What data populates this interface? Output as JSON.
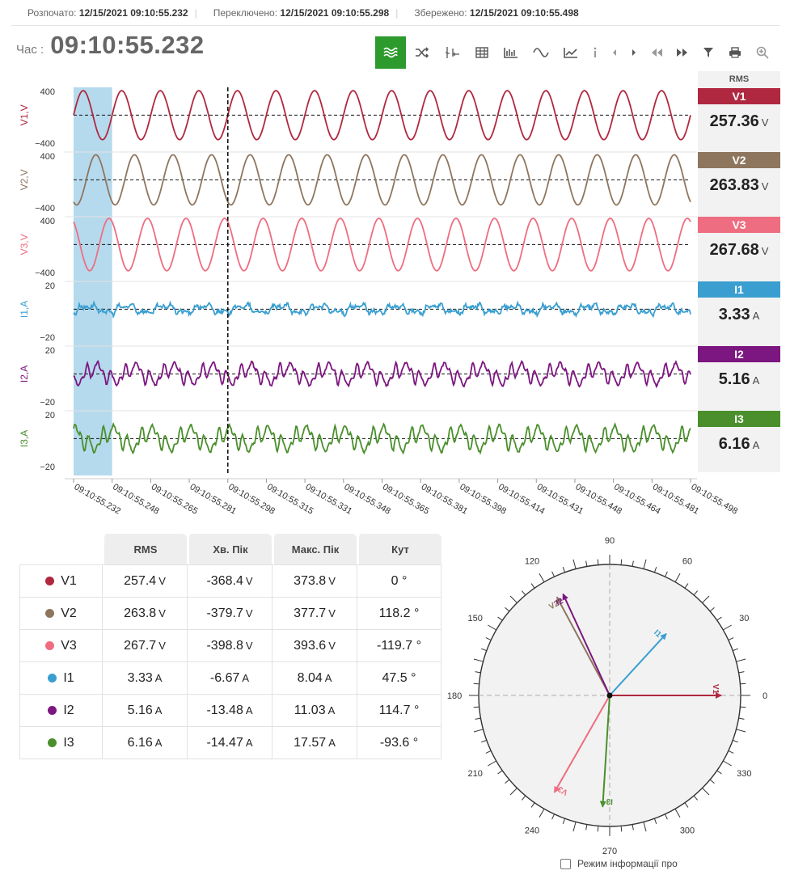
{
  "header": {
    "opened_label": "Розпочато:",
    "opened_value": "12/15/2021 09:10:55.232",
    "switched_label": "Переключено:",
    "switched_value": "12/15/2021 09:10:55.298",
    "saved_label": "Збережено:",
    "saved_value": "12/15/2021 09:10:55.498"
  },
  "time": {
    "label": "Час :",
    "value": "09:10:55.232"
  },
  "toolbar": {
    "icons": [
      "waveform-icon",
      "shuffle-icon",
      "spectrum-icon",
      "table-icon",
      "bar-chart-icon",
      "sine-icon",
      "line-chart-icon",
      "info-icon",
      "prev-icon",
      "next-icon",
      "rewind-icon",
      "fast-forward-icon",
      "filter-icon",
      "print-icon",
      "zoom-icon"
    ],
    "active": "waveform-icon"
  },
  "rms_panel": {
    "header": "RMS",
    "items": [
      {
        "name": "V1",
        "value": "257.36",
        "unit": "V",
        "color": "#b0283f"
      },
      {
        "name": "V2",
        "value": "263.83",
        "unit": "V",
        "color": "#8e765e"
      },
      {
        "name": "V3",
        "value": "267.68",
        "unit": "V",
        "color": "#ee6d80"
      },
      {
        "name": "I1",
        "value": "3.33",
        "unit": "A",
        "color": "#3a9fd0"
      },
      {
        "name": "I2",
        "value": "5.16",
        "unit": "A",
        "color": "#7c1680"
      },
      {
        "name": "I3",
        "value": "6.16",
        "unit": "A",
        "color": "#4a8f2c"
      }
    ]
  },
  "chart_data": {
    "type": "line",
    "x_ticks": [
      "09:10:55.232",
      "09:10:55.248",
      "09:10:55.265",
      "09:10:55.281",
      "09:10:55.298",
      "09:10:55.315",
      "09:10:55.331",
      "09:10:55.348",
      "09:10:55.365",
      "09:10:55.381",
      "09:10:55.398",
      "09:10:55.414",
      "09:10:55.431",
      "09:10:55.448",
      "09:10:55.464",
      "09:10:55.481",
      "09:10:55.498"
    ],
    "selection_range": [
      "09:10:55.232",
      "09:10:55.248"
    ],
    "cursor": "09:10:55.298",
    "grid": false,
    "series": [
      {
        "name": "V1",
        "ylabel": "V1,V",
        "ylim": [
          -400,
          400
        ],
        "color": "#b0283f",
        "amplitude": 370,
        "phase_deg": 0,
        "harmonics": []
      },
      {
        "name": "V2",
        "ylabel": "V2,V",
        "ylim": [
          -400,
          400
        ],
        "color": "#8e765e",
        "amplitude": 378,
        "phase_deg": 118.2,
        "harmonics": []
      },
      {
        "name": "V3",
        "ylabel": "V3,V",
        "ylim": [
          -400,
          400
        ],
        "color": "#ee6d80",
        "amplitude": 395,
        "phase_deg": -119.7,
        "harmonics": []
      },
      {
        "name": "I1",
        "ylabel": "I1,A",
        "ylim": [
          -20,
          20
        ],
        "color": "#3a9fd0",
        "amplitude": 2.5,
        "phase_deg": 47.5,
        "harmonics": [
          [
            3,
            1.5,
            30
          ],
          [
            5,
            1.2,
            60
          ]
        ],
        "noise": 1.4
      },
      {
        "name": "I2",
        "ylabel": "I2,A",
        "ylim": [
          -20,
          20
        ],
        "color": "#7c1680",
        "amplitude": 5,
        "phase_deg": 114.7,
        "harmonics": [
          [
            3,
            4,
            90
          ],
          [
            5,
            2.5,
            0
          ],
          [
            7,
            1.5,
            0
          ]
        ],
        "noise": 0.8
      },
      {
        "name": "I3",
        "ylabel": "I3,A",
        "ylim": [
          -20,
          20
        ],
        "color": "#4a8f2c",
        "amplitude": 6,
        "phase_deg": -93.6,
        "harmonics": [
          [
            3,
            4.5,
            90
          ],
          [
            5,
            3,
            0
          ],
          [
            7,
            1.5,
            0
          ]
        ],
        "noise": 0.8
      }
    ]
  },
  "table": {
    "headers": [
      "RMS",
      "Хв. Пік",
      "Макс. Пік",
      "Кут"
    ],
    "rows": [
      {
        "name": "V1",
        "color": "#b0283f",
        "rms": "257.4",
        "min": "-368.4",
        "max": "373.8",
        "unit": "V",
        "angle": "0 °"
      },
      {
        "name": "V2",
        "color": "#8e765e",
        "rms": "263.8",
        "min": "-379.7",
        "max": "377.7",
        "unit": "V",
        "angle": "118.2 °"
      },
      {
        "name": "V3",
        "color": "#ee6d80",
        "rms": "267.7",
        "min": "-398.8",
        "max": "393.6",
        "unit": "V",
        "angle": "-119.7 °"
      },
      {
        "name": "I1",
        "color": "#3a9fd0",
        "rms": "3.33",
        "min": "-6.67",
        "max": "8.04",
        "unit": "A",
        "angle": "47.5 °"
      },
      {
        "name": "I2",
        "color": "#7c1680",
        "rms": "5.16",
        "min": "-13.48",
        "max": "11.03",
        "unit": "A",
        "angle": "114.7 °"
      },
      {
        "name": "I3",
        "color": "#4a8f2c",
        "rms": "6.16",
        "min": "-14.47",
        "max": "17.57",
        "unit": "A",
        "angle": "-93.6 °"
      }
    ]
  },
  "phasor": {
    "angle_labels": [
      "0",
      "30",
      "60",
      "90",
      "120",
      "150",
      "180",
      "210",
      "240",
      "270",
      "300",
      "330"
    ],
    "vectors": [
      {
        "name": "V1",
        "angle": 0,
        "magnitude": 1.0,
        "color": "#b0283f"
      },
      {
        "name": "V2",
        "angle": 118.2,
        "magnitude": 1.0,
        "color": "#8e765e"
      },
      {
        "name": "V3",
        "angle": -119.7,
        "magnitude": 1.0,
        "color": "#ee6d80"
      },
      {
        "name": "I1",
        "angle": 47.5,
        "magnitude": 0.75,
        "color": "#3a9fd0"
      },
      {
        "name": "I2",
        "angle": 114.7,
        "magnitude": 1.0,
        "color": "#7c1680"
      },
      {
        "name": "I3",
        "angle": -93.6,
        "magnitude": 1.0,
        "color": "#4a8f2c"
      }
    ]
  },
  "info_mode": {
    "label": "Режим інформації про",
    "checked": false
  }
}
